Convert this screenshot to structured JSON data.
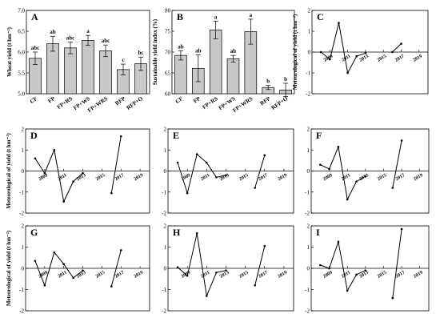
{
  "chart_data": [
    {
      "panel": "A",
      "type": "bar",
      "ylabel": "Wheat yield (t hm⁻²)",
      "ylim": [
        5.0,
        7.0
      ],
      "yticks": [
        "5.0",
        "5.5",
        "6.0",
        "6.5",
        "7.0"
      ],
      "categories": [
        "CF",
        "FP",
        "FP+RS",
        "FP+WS",
        "FP+WRS",
        "RFP",
        "RFP+O"
      ],
      "values": [
        5.85,
        6.2,
        6.1,
        6.28,
        6.03,
        5.58,
        5.72
      ],
      "errors": [
        0.15,
        0.18,
        0.14,
        0.12,
        0.14,
        0.13,
        0.16
      ],
      "letters": [
        "abc",
        "ab",
        "abc",
        "a",
        "abc",
        "c",
        "bc"
      ]
    },
    {
      "panel": "B",
      "type": "bar",
      "ylabel": "Sustainable yield index (%)",
      "ylim": [
        60,
        80
      ],
      "yticks": [
        "60",
        "65",
        "70",
        "75",
        "80"
      ],
      "categories": [
        "CF",
        "FP",
        "FP+RS",
        "FP+WS",
        "FP+WRS",
        "RFP",
        "RFP+O"
      ],
      "values": [
        69.2,
        66.1,
        75.3,
        68.4,
        74.9,
        61.5,
        60.9
      ],
      "errors": [
        1.1,
        3.2,
        2.1,
        0.8,
        3.0,
        0.5,
        1.6
      ],
      "letters": [
        "ab",
        "ab",
        "a",
        "ab",
        "a",
        "b",
        "b"
      ]
    },
    {
      "panel": "C",
      "type": "line",
      "ylabel": "Meteorological of yield (t hm⁻²)",
      "ylim": [
        -2,
        2
      ],
      "yticks": [
        "-2",
        "-1",
        "0",
        "1",
        "2"
      ],
      "xticks": [
        "2009",
        "2011",
        "2013",
        "2015",
        "2017",
        "2019"
      ],
      "segments": [
        [
          [
            2008,
            0.0
          ],
          [
            2009,
            -0.35
          ],
          [
            2010,
            1.4
          ],
          [
            2011,
            -1.0
          ],
          [
            2012,
            -0.2
          ],
          [
            2013,
            -0.05
          ]
        ],
        [
          [
            2016,
            0.0
          ],
          [
            2017,
            0.4
          ]
        ]
      ]
    },
    {
      "panel": "D",
      "type": "line",
      "ylabel": "Meteorological of yield (t hm⁻²)",
      "ylim": [
        -2,
        2
      ],
      "yticks": [
        "-2",
        "-1",
        "0",
        "1",
        "2"
      ],
      "xticks": [
        "2009",
        "2011",
        "2013",
        "2015",
        "2017",
        "2019"
      ],
      "segments": [
        [
          [
            2008,
            0.6
          ],
          [
            2009,
            -0.1
          ],
          [
            2010,
            1.0
          ],
          [
            2011,
            -1.45
          ],
          [
            2012,
            -0.5
          ],
          [
            2013,
            -0.1
          ]
        ],
        [
          [
            2016,
            -1.05
          ],
          [
            2017,
            1.65
          ]
        ]
      ]
    },
    {
      "panel": "E",
      "type": "line",
      "ylabel": "",
      "ylim": [
        -2,
        2
      ],
      "yticks": [
        "-2",
        "-1",
        "0",
        "1",
        "2"
      ],
      "xticks": [
        "2009",
        "2011",
        "2013",
        "2015",
        "2017",
        "2019"
      ],
      "segments": [
        [
          [
            2008,
            0.4
          ],
          [
            2009,
            -1.05
          ],
          [
            2010,
            0.8
          ],
          [
            2011,
            0.4
          ],
          [
            2012,
            -0.3
          ],
          [
            2013,
            -0.2
          ]
        ],
        [
          [
            2016,
            -0.8
          ],
          [
            2017,
            0.75
          ]
        ]
      ]
    },
    {
      "panel": "F",
      "type": "line",
      "ylabel": "",
      "ylim": [
        -2,
        2
      ],
      "yticks": [
        "-2",
        "-1",
        "0",
        "1",
        "2"
      ],
      "xticks": [
        "2009",
        "2011",
        "2013",
        "2015",
        "2017",
        "2019"
      ],
      "segments": [
        [
          [
            2008,
            0.3
          ],
          [
            2009,
            0.1
          ],
          [
            2010,
            1.15
          ],
          [
            2011,
            -1.35
          ],
          [
            2012,
            -0.5
          ],
          [
            2013,
            -0.25
          ]
        ],
        [
          [
            2016,
            -0.8
          ],
          [
            2017,
            1.45
          ]
        ]
      ]
    },
    {
      "panel": "G",
      "type": "line",
      "ylabel": "Meteorological of yield (t hm⁻²)",
      "ylim": [
        -2,
        2
      ],
      "yticks": [
        "-2",
        "-1",
        "0",
        "1",
        "2"
      ],
      "xticks": [
        "2009",
        "2011",
        "2013",
        "2015",
        "2017",
        "2019"
      ],
      "segments": [
        [
          [
            2008,
            0.35
          ],
          [
            2009,
            -0.8
          ],
          [
            2010,
            0.75
          ],
          [
            2011,
            0.2
          ],
          [
            2012,
            -0.45
          ],
          [
            2013,
            -0.1
          ]
        ],
        [
          [
            2016,
            -0.85
          ],
          [
            2017,
            0.85
          ]
        ]
      ]
    },
    {
      "panel": "H",
      "type": "line",
      "ylabel": "",
      "ylim": [
        -2,
        2
      ],
      "yticks": [
        "-2",
        "-1",
        "0",
        "1",
        "2"
      ],
      "xticks": [
        "2009",
        "2011",
        "2013",
        "2015",
        "2017",
        "2019"
      ],
      "segments": [
        [
          [
            2008,
            0.05
          ],
          [
            2009,
            -0.35
          ],
          [
            2010,
            1.65
          ],
          [
            2011,
            -1.3
          ],
          [
            2012,
            -0.2
          ],
          [
            2013,
            -0.1
          ]
        ],
        [
          [
            2016,
            -0.8
          ],
          [
            2017,
            1.05
          ]
        ]
      ]
    },
    {
      "panel": "I",
      "type": "line",
      "ylabel": "",
      "ylim": [
        -2,
        2
      ],
      "yticks": [
        "-2",
        "-1",
        "0",
        "1",
        "2"
      ],
      "xticks": [
        "2009",
        "2011",
        "2013",
        "2015",
        "2017",
        "2019"
      ],
      "segments": [
        [
          [
            2008,
            0.15
          ],
          [
            2009,
            0.0
          ],
          [
            2010,
            1.25
          ],
          [
            2011,
            -1.05
          ],
          [
            2012,
            -0.3
          ],
          [
            2013,
            -0.1
          ]
        ],
        [
          [
            2016,
            -1.4
          ],
          [
            2017,
            1.85
          ]
        ]
      ]
    }
  ]
}
